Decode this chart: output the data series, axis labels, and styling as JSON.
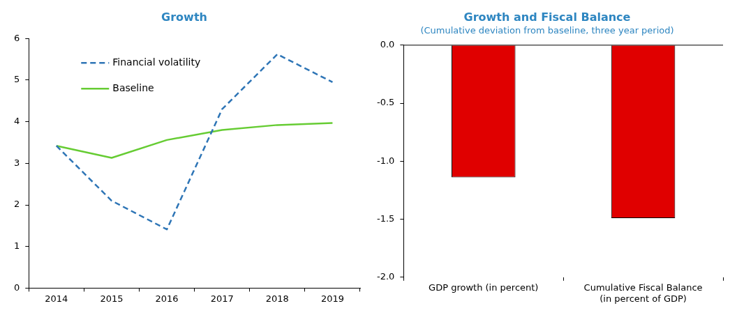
{
  "chart_data": [
    {
      "type": "line",
      "title": "Growth",
      "categories": [
        "2014",
        "2015",
        "2016",
        "2017",
        "2018",
        "2019"
      ],
      "ylim": [
        0,
        6
      ],
      "yticks": [
        0,
        1,
        2,
        3,
        4,
        5,
        6
      ],
      "legend": "top left",
      "grid": false,
      "marker": "none",
      "series": [
        {
          "name": "Financial volatility",
          "color": "#2e75b6",
          "line_style": "dashed",
          "values": [
            3.42,
            2.1,
            1.41,
            4.3,
            5.62,
            4.95
          ]
        },
        {
          "name": "Baseline",
          "color": "#66cc33",
          "line_style": "solid",
          "values": [
            3.42,
            3.13,
            3.56,
            3.8,
            3.92,
            3.97
          ]
        }
      ]
    },
    {
      "type": "bar",
      "title": "Growth and Fiscal Balance",
      "subtitle": "(Cumulative deviation from baseline, three year period)",
      "categories": [
        "GDP growth (in percent)",
        "Cumulative Fiscal Balance (in percent of GDP)"
      ],
      "values": [
        -1.14,
        -1.49
      ],
      "color": "#e00000",
      "ylim": [
        -2,
        0
      ],
      "yticks": [
        {
          "value": -2,
          "label": "-2.0"
        },
        {
          "value": -1.5,
          "label": "-1.5"
        },
        {
          "value": -1,
          "label": "-1.0"
        },
        {
          "value": -0.5,
          "label": "-0.5"
        },
        {
          "value": 0,
          "label": "0.0"
        }
      ],
      "grid": false,
      "legend": false
    }
  ]
}
